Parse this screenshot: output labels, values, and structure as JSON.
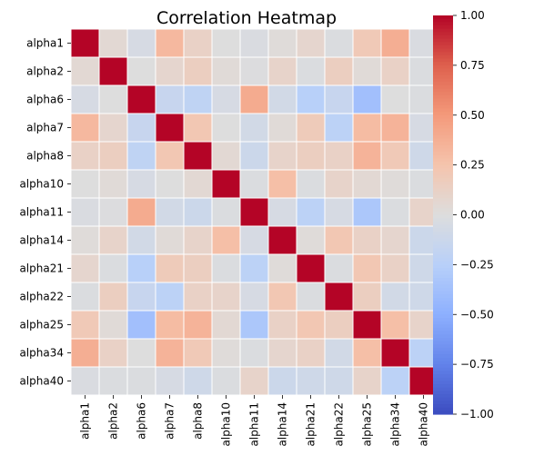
{
  "chart_data": {
    "type": "heatmap",
    "title": "Correlation Heatmap",
    "xlabel": "",
    "ylabel": "",
    "labels": [
      "alpha1",
      "alpha2",
      "alpha6",
      "alpha7",
      "alpha8",
      "alpha10",
      "alpha11",
      "alpha14",
      "alpha21",
      "alpha22",
      "alpha25",
      "alpha34",
      "alpha40"
    ],
    "matrix": [
      [
        1.0,
        0.05,
        -0.05,
        0.32,
        0.12,
        0.0,
        -0.03,
        0.02,
        0.08,
        -0.02,
        0.2,
        0.38,
        -0.03
      ],
      [
        0.05,
        1.0,
        0.0,
        0.08,
        0.15,
        0.03,
        -0.01,
        0.1,
        -0.02,
        0.15,
        0.03,
        0.12,
        -0.02
      ],
      [
        -0.05,
        0.0,
        1.0,
        -0.15,
        -0.2,
        -0.05,
        0.4,
        -0.08,
        -0.25,
        -0.15,
        -0.38,
        0.0,
        -0.02
      ],
      [
        0.32,
        0.08,
        -0.15,
        1.0,
        0.22,
        0.0,
        -0.08,
        0.03,
        0.18,
        -0.22,
        0.3,
        0.35,
        -0.05
      ],
      [
        0.12,
        0.15,
        -0.2,
        0.22,
        1.0,
        0.05,
        -0.12,
        0.1,
        0.15,
        0.12,
        0.35,
        0.2,
        -0.1
      ],
      [
        0.0,
        0.03,
        -0.05,
        0.0,
        0.05,
        1.0,
        -0.02,
        0.28,
        -0.02,
        0.1,
        0.05,
        0.02,
        -0.02
      ],
      [
        -0.03,
        -0.01,
        0.4,
        -0.08,
        -0.12,
        -0.02,
        1.0,
        -0.05,
        -0.22,
        -0.05,
        -0.32,
        -0.02,
        0.1
      ],
      [
        0.02,
        0.1,
        -0.08,
        0.03,
        0.1,
        0.28,
        -0.05,
        1.0,
        0.02,
        0.22,
        0.12,
        0.08,
        -0.12
      ],
      [
        0.08,
        -0.02,
        -0.25,
        0.18,
        0.15,
        -0.02,
        -0.22,
        0.02,
        1.0,
        -0.02,
        0.22,
        0.12,
        -0.1
      ],
      [
        -0.02,
        0.15,
        -0.15,
        -0.22,
        0.12,
        0.1,
        -0.05,
        0.22,
        -0.02,
        1.0,
        0.15,
        -0.08,
        -0.1
      ],
      [
        0.2,
        0.03,
        -0.38,
        0.3,
        0.35,
        0.05,
        -0.32,
        0.12,
        0.22,
        0.15,
        1.0,
        0.28,
        0.1
      ],
      [
        0.38,
        0.12,
        0.0,
        0.35,
        0.2,
        0.02,
        -0.02,
        0.08,
        0.12,
        -0.08,
        0.28,
        1.0,
        -0.22
      ],
      [
        -0.03,
        -0.02,
        -0.02,
        -0.05,
        -0.1,
        -0.02,
        0.1,
        -0.12,
        -0.1,
        -0.1,
        0.1,
        -0.22,
        1.0
      ]
    ],
    "colormap": "coolwarm",
    "vmin": -1.0,
    "vmax": 1.0,
    "colorbar_ticks": [
      "1.00",
      "0.75",
      "0.50",
      "0.25",
      "0.00",
      "−0.25",
      "−0.50",
      "−0.75",
      "−1.00"
    ],
    "grid": false,
    "cell_border_color": "#ffffff"
  }
}
